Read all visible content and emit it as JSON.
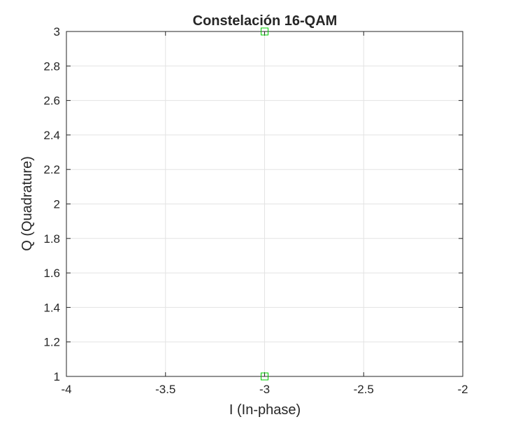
{
  "chart_data": {
    "type": "scatter",
    "title": "Constelación 16-QAM",
    "xlabel": "I (In-phase)",
    "ylabel": "Q (Quadrature)",
    "xlim": [
      -4,
      -2
    ],
    "ylim": [
      1,
      3
    ],
    "xticks": [
      -4,
      -3.5,
      -3,
      -2.5,
      -2
    ],
    "yticks": [
      1,
      1.2,
      1.4,
      1.6,
      1.8,
      2,
      2.2,
      2.4,
      2.6,
      2.8,
      3
    ],
    "xtick_labels": [
      "-4",
      "-3.5",
      "-3",
      "-2.5",
      "-2"
    ],
    "ytick_labels": [
      "1",
      "1.2",
      "1.4",
      "1.6",
      "1.8",
      "2",
      "2.2",
      "2.4",
      "2.6",
      "2.8",
      "3"
    ],
    "grid": true,
    "box": true,
    "marker": "square",
    "marker_color": "#00cc00",
    "series": [
      {
        "points": [
          {
            "x": -3,
            "y": 3
          },
          {
            "x": -3,
            "y": 1
          }
        ]
      }
    ]
  }
}
